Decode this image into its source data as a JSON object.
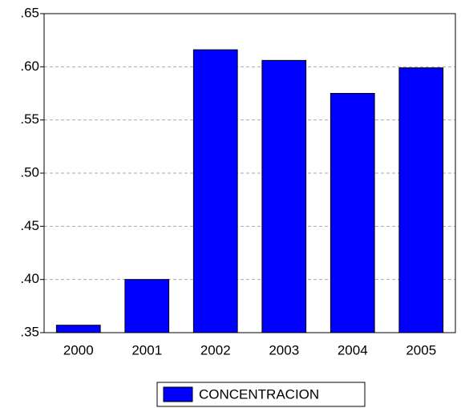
{
  "chart_data": {
    "type": "bar",
    "categories": [
      "2000",
      "2001",
      "2002",
      "2003",
      "2004",
      "2005"
    ],
    "series": [
      {
        "name": "CONCENTRACION",
        "color": "#0000ff",
        "values": [
          0.357,
          0.4,
          0.616,
          0.606,
          0.575,
          0.599
        ]
      }
    ],
    "ylim": [
      0.35,
      0.65
    ],
    "yticks": [
      {
        "value": 0.35,
        "label": ".35"
      },
      {
        "value": 0.4,
        "label": ".40"
      },
      {
        "value": 0.45,
        "label": ".45"
      },
      {
        "value": 0.5,
        "label": ".50"
      },
      {
        "value": 0.55,
        "label": ".55"
      },
      {
        "value": 0.6,
        "label": ".60"
      },
      {
        "value": 0.65,
        "label": ".65"
      }
    ],
    "grid": true,
    "legend": "bottom"
  }
}
